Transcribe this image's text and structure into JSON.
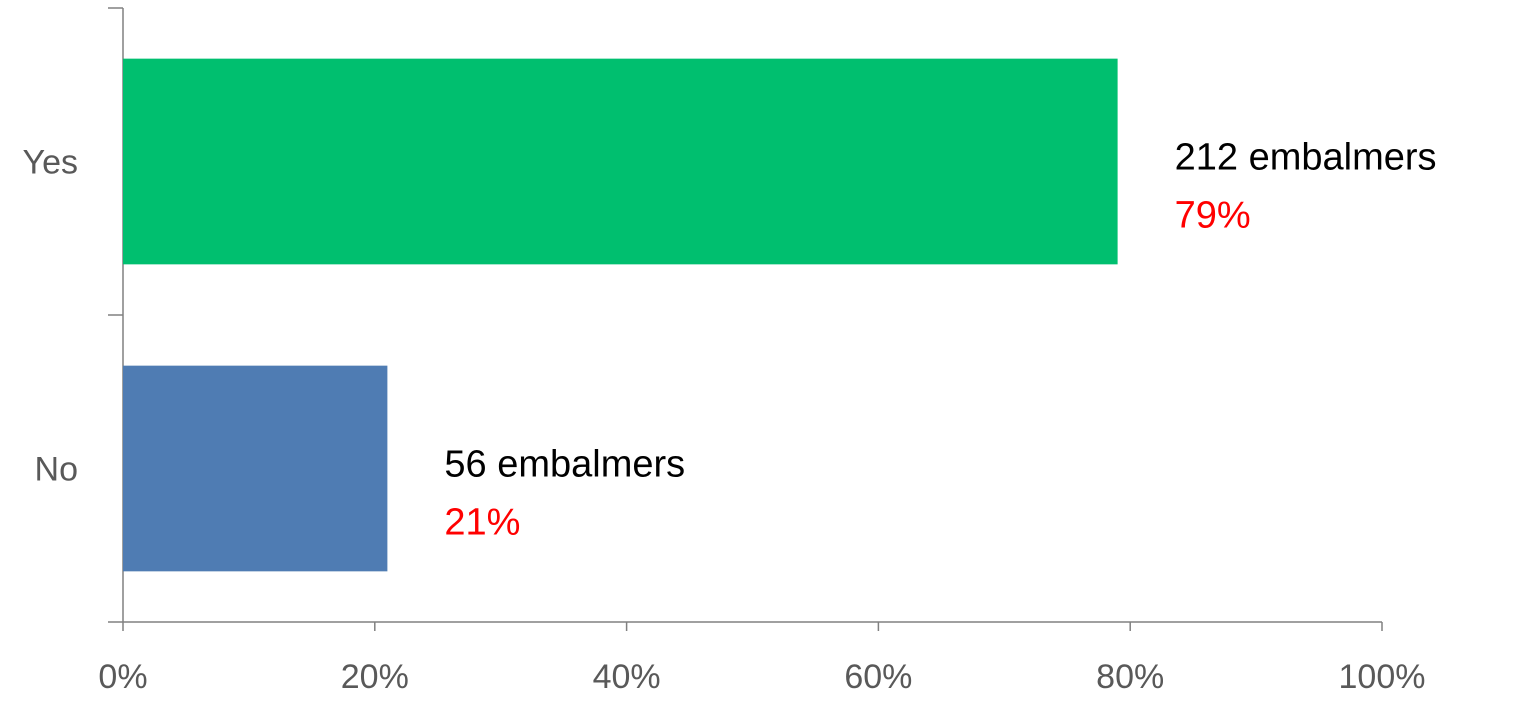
{
  "chart_data": {
    "type": "bar",
    "orientation": "horizontal",
    "categories": [
      "Yes",
      "No"
    ],
    "values": [
      79,
      21
    ],
    "xlim": [
      0,
      100
    ],
    "x_ticks": [
      "0%",
      "20%",
      "40%",
      "60%",
      "80%",
      "100%"
    ],
    "data_labels": [
      {
        "count": "212 embalmers",
        "percent": "79%"
      },
      {
        "count": "56 embalmers",
        "percent": "21%"
      }
    ],
    "grid": false,
    "legend": "none",
    "colors": {
      "Yes": "#00BF6F",
      "No": "#4F7CB3",
      "percent_label": "#FF0000"
    }
  }
}
